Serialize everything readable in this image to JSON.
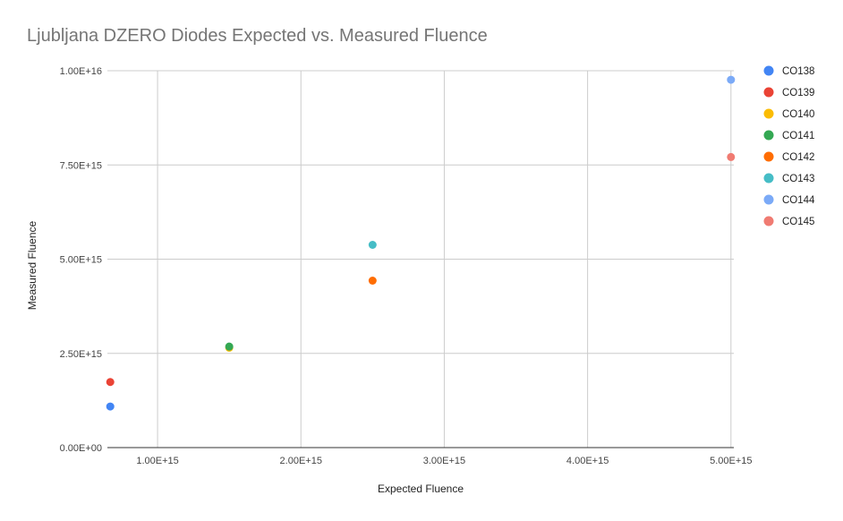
{
  "chart_data": {
    "type": "scatter",
    "title": "Ljubljana DZERO Diodes Expected vs. Measured Fluence",
    "xlabel": "Expected Fluence",
    "ylabel": "Measured Fluence",
    "xlim": [
      650000000000000.0,
      5020000000000000.0
    ],
    "ylim": [
      0,
      1e+16
    ],
    "xticks": [
      1000000000000000.0,
      2000000000000000.0,
      3000000000000000.0,
      4000000000000000.0,
      5000000000000000.0
    ],
    "xtick_labels": [
      "1.00E+15",
      "2.00E+15",
      "3.00E+15",
      "4.00E+15",
      "5.00E+15"
    ],
    "yticks": [
      0,
      2500000000000000.0,
      5000000000000000.0,
      7500000000000000.0,
      1e+16
    ],
    "ytick_labels": [
      "0.00E+00",
      "2.50E+15",
      "5.00E+15",
      "7.50E+15",
      "1.00E+16"
    ],
    "grid": true,
    "legend_position": "right",
    "series": [
      {
        "name": "CO138",
        "color": "#4285f4",
        "points": [
          [
            670000000000000.0,
            1090000000000000.0
          ]
        ]
      },
      {
        "name": "CO139",
        "color": "#ea4335",
        "points": [
          [
            670000000000000.0,
            1740000000000000.0
          ]
        ]
      },
      {
        "name": "CO140",
        "color": "#fbbc04",
        "points": [
          [
            1500000000000000.0,
            2650000000000000.0
          ]
        ]
      },
      {
        "name": "CO141",
        "color": "#34a853",
        "points": [
          [
            1500000000000000.0,
            2680000000000000.0
          ]
        ]
      },
      {
        "name": "CO142",
        "color": "#ff6d01",
        "points": [
          [
            2500000000000000.0,
            4430000000000000.0
          ]
        ]
      },
      {
        "name": "CO143",
        "color": "#46bdc6",
        "points": [
          [
            2500000000000000.0,
            5380000000000000.0
          ]
        ]
      },
      {
        "name": "CO144",
        "color": "#7baaf7",
        "points": [
          [
            5000000000000000.0,
            9760000000000000.0
          ]
        ]
      },
      {
        "name": "CO145",
        "color": "#f07b72",
        "points": [
          [
            5000000000000000.0,
            7710000000000000.0
          ]
        ]
      }
    ]
  }
}
